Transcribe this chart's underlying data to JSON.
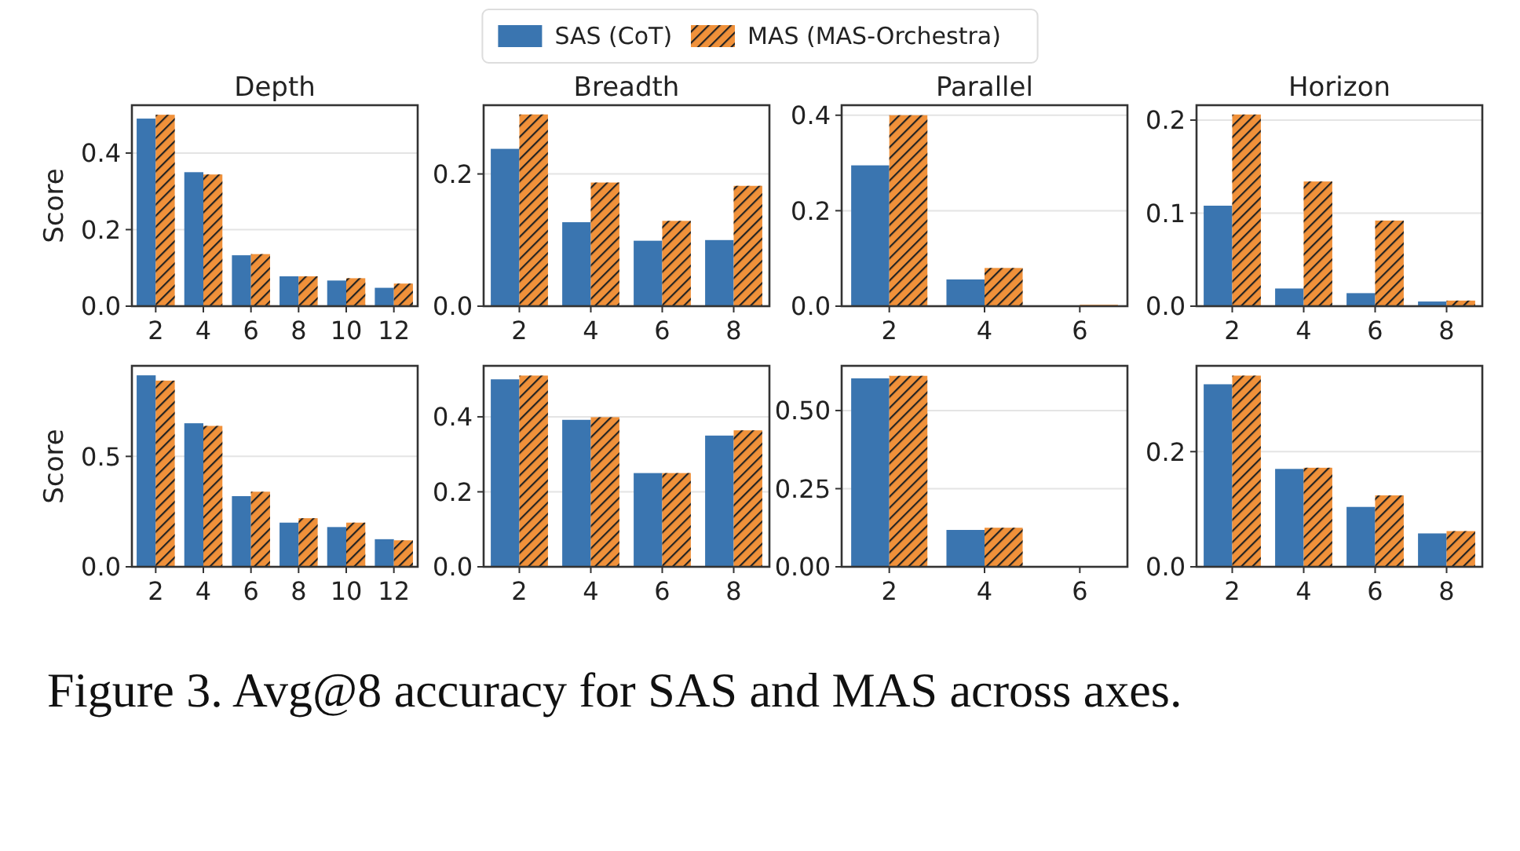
{
  "chart_data": [
    {
      "type": "bar",
      "title": "Depth",
      "ylabel": "Score",
      "categories": [
        "2",
        "4",
        "6",
        "8",
        "10",
        "12"
      ],
      "ylim": [
        0,
        0.525
      ],
      "yticks": [
        {
          "value": 0,
          "label": "0.0"
        },
        {
          "value": 0.2,
          "label": "0.2"
        },
        {
          "value": 0.4,
          "label": "0.4"
        }
      ],
      "grid": "y",
      "legend": "top",
      "annotations": [
        "Figure 3. Avg@8 accuracy for SAS and MAS across axes."
      ],
      "series": [
        {
          "name": "SAS (CoT)",
          "color": "#3a75b0",
          "values": [
            0.49,
            0.35,
            0.133,
            0.078,
            0.067,
            0.048
          ]
        },
        {
          "name": "MAS (MAS-Orchestra)",
          "color": "#f0913a",
          "values": [
            0.5,
            0.344,
            0.136,
            0.078,
            0.073,
            0.059
          ]
        }
      ]
    },
    {
      "type": "bar",
      "title": "Breadth",
      "categories": [
        "2",
        "4",
        "6",
        "8"
      ],
      "ylim": [
        0,
        0.304
      ],
      "yticks": [
        {
          "value": 0,
          "label": "0.0"
        },
        {
          "value": 0.2,
          "label": "0.2"
        }
      ],
      "grid": "y",
      "series": [
        {
          "name": "SAS (CoT)",
          "color": "#3a75b0",
          "values": [
            0.238,
            0.127,
            0.099,
            0.1
          ]
        },
        {
          "name": "MAS (MAS-Orchestra)",
          "color": "#f0913a",
          "values": [
            0.29,
            0.187,
            0.129,
            0.182
          ]
        }
      ]
    },
    {
      "type": "bar",
      "title": "Parallel",
      "categories": [
        "2",
        "4",
        "6"
      ],
      "ylim": [
        0,
        0.421
      ],
      "yticks": [
        {
          "value": 0,
          "label": "0.0"
        },
        {
          "value": 0.2,
          "label": "0.2"
        },
        {
          "value": 0.4,
          "label": "0.4"
        }
      ],
      "grid": "y",
      "series": [
        {
          "name": "SAS (CoT)",
          "color": "#3a75b0",
          "values": [
            0.295,
            0.056,
            0
          ]
        },
        {
          "name": "MAS (MAS-Orchestra)",
          "color": "#f0913a",
          "values": [
            0.4,
            0.08,
            0.003
          ]
        }
      ]
    },
    {
      "type": "bar",
      "title": "Horizon",
      "categories": [
        "2",
        "4",
        "6",
        "8"
      ],
      "ylim": [
        0,
        0.216
      ],
      "yticks": [
        {
          "value": 0,
          "label": "0.0"
        },
        {
          "value": 0.1,
          "label": "0.1"
        },
        {
          "value": 0.2,
          "label": "0.2"
        }
      ],
      "grid": "y",
      "series": [
        {
          "name": "SAS (CoT)",
          "color": "#3a75b0",
          "values": [
            0.108,
            0.019,
            0.014,
            0.005
          ]
        },
        {
          "name": "MAS (MAS-Orchestra)",
          "color": "#f0913a",
          "values": [
            0.206,
            0.134,
            0.092,
            0.006
          ]
        }
      ]
    },
    {
      "type": "bar",
      "ylabel": "Score",
      "categories": [
        "2",
        "4",
        "6",
        "8",
        "10",
        "12"
      ],
      "ylim": [
        0,
        0.91
      ],
      "yticks": [
        {
          "value": 0,
          "label": "0.0"
        },
        {
          "value": 0.5,
          "label": "0.5"
        }
      ],
      "grid": "y",
      "series": [
        {
          "name": "SAS (CoT)",
          "color": "#3a75b0",
          "values": [
            0.867,
            0.65,
            0.32,
            0.2,
            0.18,
            0.125
          ]
        },
        {
          "name": "MAS (MAS-Orchestra)",
          "color": "#f0913a",
          "values": [
            0.843,
            0.638,
            0.34,
            0.22,
            0.2,
            0.12
          ]
        }
      ]
    },
    {
      "type": "bar",
      "categories": [
        "2",
        "4",
        "6",
        "8"
      ],
      "ylim": [
        0,
        0.536
      ],
      "yticks": [
        {
          "value": 0,
          "label": "0.0"
        },
        {
          "value": 0.2,
          "label": "0.2"
        },
        {
          "value": 0.4,
          "label": "0.4"
        }
      ],
      "grid": "y",
      "series": [
        {
          "name": "SAS (CoT)",
          "color": "#3a75b0",
          "values": [
            0.5,
            0.392,
            0.25,
            0.35
          ]
        },
        {
          "name": "MAS (MAS-Orchestra)",
          "color": "#f0913a",
          "values": [
            0.51,
            0.399,
            0.25,
            0.364
          ]
        }
      ]
    },
    {
      "type": "bar",
      "categories": [
        "2",
        "4",
        "6"
      ],
      "ylim": [
        0,
        0.643
      ],
      "yticks": [
        {
          "value": 0,
          "label": "0.00"
        },
        {
          "value": 0.25,
          "label": "0.25"
        },
        {
          "value": 0.5,
          "label": "0.50"
        }
      ],
      "grid": "y",
      "series": [
        {
          "name": "SAS (CoT)",
          "color": "#3a75b0",
          "values": [
            0.603,
            0.118,
            0
          ]
        },
        {
          "name": "MAS (MAS-Orchestra)",
          "color": "#f0913a",
          "values": [
            0.611,
            0.125,
            0
          ]
        }
      ]
    },
    {
      "type": "bar",
      "categories": [
        "2",
        "4",
        "6",
        "8"
      ],
      "ylim": [
        0,
        0.349
      ],
      "yticks": [
        {
          "value": 0,
          "label": "0.0"
        },
        {
          "value": 0.2,
          "label": "0.2"
        }
      ],
      "grid": "y",
      "series": [
        {
          "name": "SAS (CoT)",
          "color": "#3a75b0",
          "values": [
            0.317,
            0.17,
            0.104,
            0.058
          ]
        },
        {
          "name": "MAS (MAS-Orchestra)",
          "color": "#f0913a",
          "values": [
            0.332,
            0.172,
            0.124,
            0.062
          ]
        }
      ]
    }
  ]
}
